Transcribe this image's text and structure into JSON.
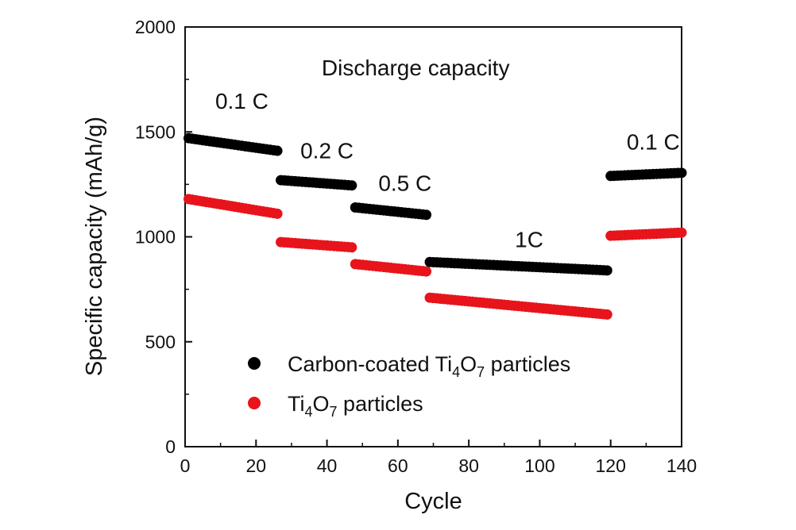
{
  "chart_data": {
    "type": "scatter",
    "xlabel": "Cycle",
    "ylabel": "Specific capacity (mAh/g)",
    "xlim": [
      0,
      140
    ],
    "ylim": [
      0,
      2000
    ],
    "xticks": [
      0,
      20,
      40,
      60,
      80,
      100,
      120,
      140
    ],
    "yticks": [
      0,
      500,
      1000,
      1500,
      2000
    ],
    "grid": false,
    "legend_position": "bottom-left",
    "annotations": [
      {
        "text": "Discharge capacity",
        "x": 65,
        "y": 1770
      },
      {
        "text": "0.1 C",
        "x": 16,
        "y": 1610
      },
      {
        "text": "0.2 C",
        "x": 40,
        "y": 1375
      },
      {
        "text": "0.5 C",
        "x": 62,
        "y": 1220
      },
      {
        "text": "1C",
        "x": 97,
        "y": 950
      },
      {
        "text": "0.1 C",
        "x": 132,
        "y": 1415
      }
    ],
    "series": [
      {
        "name": "Carbon-coated Ti4O7 particles",
        "color": "#000000",
        "segments": [
          {
            "x_start": 1,
            "x_end": 26,
            "y_start": 1470,
            "y_end": 1410
          },
          {
            "x_start": 27,
            "x_end": 47,
            "y_start": 1270,
            "y_end": 1245
          },
          {
            "x_start": 48,
            "x_end": 68,
            "y_start": 1140,
            "y_end": 1105
          },
          {
            "x_start": 69,
            "x_end": 119,
            "y_start": 880,
            "y_end": 840
          },
          {
            "x_start": 120,
            "x_end": 140,
            "y_start": 1290,
            "y_end": 1305
          }
        ]
      },
      {
        "name": "Ti4O7 particles",
        "color": "#e8141b",
        "segments": [
          {
            "x_start": 1,
            "x_end": 26,
            "y_start": 1180,
            "y_end": 1110
          },
          {
            "x_start": 27,
            "x_end": 47,
            "y_start": 975,
            "y_end": 950
          },
          {
            "x_start": 48,
            "x_end": 68,
            "y_start": 870,
            "y_end": 835
          },
          {
            "x_start": 69,
            "x_end": 119,
            "y_start": 710,
            "y_end": 630
          },
          {
            "x_start": 120,
            "x_end": 140,
            "y_start": 1005,
            "y_end": 1020
          }
        ]
      }
    ],
    "legend": [
      {
        "label_main": "Carbon-coated Ti",
        "sub1": "4",
        "mid": "O",
        "sub2": "7",
        "tail": " particles",
        "color": "#000000"
      },
      {
        "label_main": "Ti",
        "sub1": "4",
        "mid": "O",
        "sub2": "7",
        "tail": " particles",
        "color": "#e8141b"
      }
    ]
  }
}
